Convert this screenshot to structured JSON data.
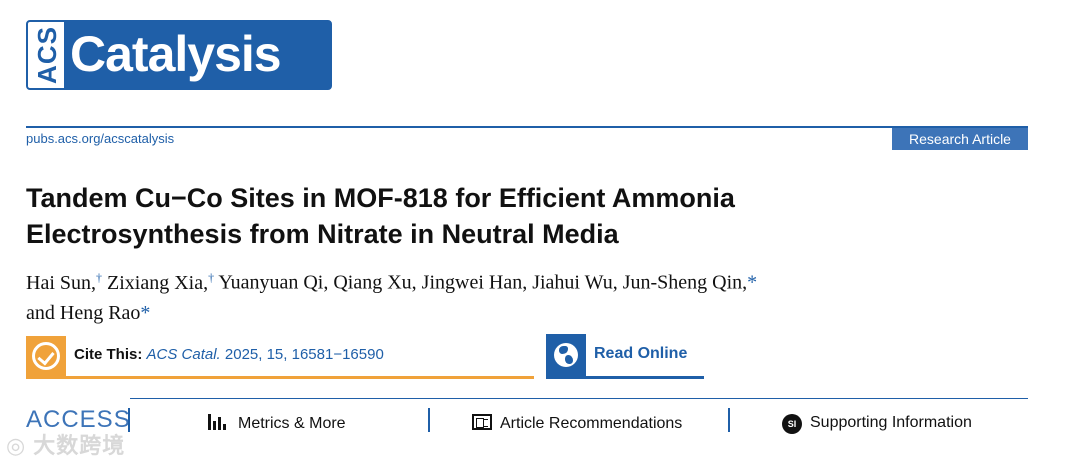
{
  "logo": {
    "acs": "ACS",
    "name": "Catalysis"
  },
  "journal": {
    "url": "pubs.acs.org/acscatalysis",
    "article_type": "Research Article"
  },
  "title": {
    "line1": "Tandem Cu−Co Sites in MOF-818 for Efficient Ammonia",
    "line2": "Electrosynthesis from Nitrate in Neutral Media"
  },
  "authors": [
    {
      "name": "Hai Sun,",
      "mark": "†"
    },
    {
      "name": "Zixiang Xia,",
      "mark": "†"
    },
    {
      "name": "Yuanyuan Qi,",
      "mark": ""
    },
    {
      "name": "Qiang Xu,",
      "mark": ""
    },
    {
      "name": "Jingwei Han,",
      "mark": ""
    },
    {
      "name": "Jiahui Wu,",
      "mark": ""
    },
    {
      "name": "Jun-Sheng Qin,",
      "mark": "*"
    },
    {
      "name": "and Heng Rao",
      "mark": "*"
    }
  ],
  "cite": {
    "label": "Cite This:",
    "journal": "ACS Catal.",
    "details": "2025, 15, 16581−16590"
  },
  "read_online": "Read Online",
  "access_bar": {
    "access": "ACCESS",
    "metrics": "Metrics & More",
    "recommendations": "Article Recommendations",
    "si_icon": "SI",
    "supporting": "Supporting Information"
  },
  "watermark": "◎ 大数跨境",
  "colors": {
    "brand": "#1f5fa8",
    "accent": "#f0a23a"
  },
  "icons": [
    "check-circle-icon",
    "globe-icon",
    "bar-chart-icon",
    "recommendations-icon",
    "si-icon"
  ]
}
